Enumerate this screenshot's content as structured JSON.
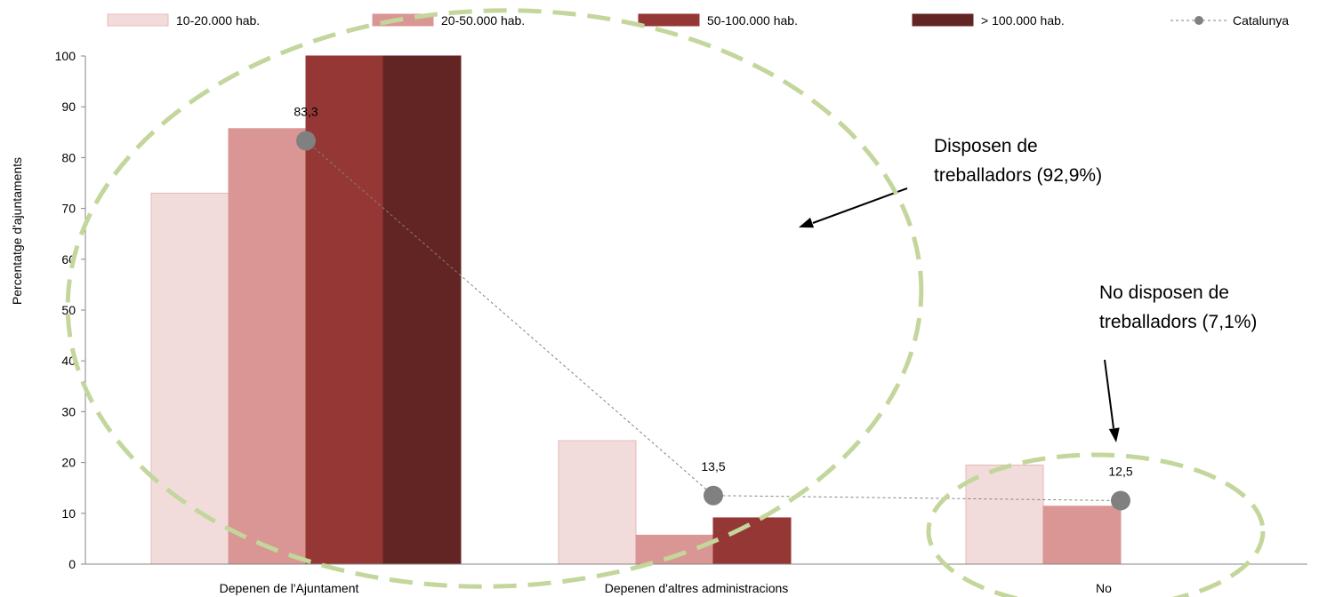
{
  "chart_data": {
    "type": "bar",
    "ylabel": "Percentatge d'ajuntaments",
    "xlabel": "",
    "ylim": [
      0,
      100
    ],
    "yticks": [
      0,
      10,
      20,
      30,
      40,
      50,
      60,
      70,
      80,
      90,
      100
    ],
    "categories": [
      "Depenen de l'Ajuntament",
      "Depenen d'altres administracions",
      "No"
    ],
    "series": [
      {
        "name": "10-20.000 hab.",
        "color": "#f2dcdb",
        "stroke": "#e6b9b8",
        "values": [
          73,
          24.3,
          19.5
        ]
      },
      {
        "name": "20-50.000 hab.",
        "color": "#d99694",
        "stroke": "#d99694",
        "values": [
          85.7,
          5.7,
          11.4
        ]
      },
      {
        "name": "50-100.000 hab.",
        "color": "#953735",
        "stroke": "#953735",
        "values": [
          100,
          9.1,
          null
        ]
      },
      {
        "name": "> 100.000 hab.",
        "color": "#632523",
        "stroke": "#632523",
        "values": [
          100,
          null,
          null
        ]
      }
    ],
    "line_series": {
      "name": "Catalunya",
      "color": "#808080",
      "values": [
        83.3,
        13.5,
        12.5
      ],
      "labels": [
        "83,3",
        "13,5",
        "12,5"
      ]
    },
    "legend_position": "top",
    "grid": false,
    "annotations": [
      {
        "lines": [
          "Disposen de",
          "treballadors (92,9%)"
        ],
        "arrow": "left"
      },
      {
        "lines": [
          "No disposen de",
          "treballadors (7,1%)"
        ],
        "arrow": "down"
      }
    ],
    "highlight_color": "#c3d69b"
  }
}
